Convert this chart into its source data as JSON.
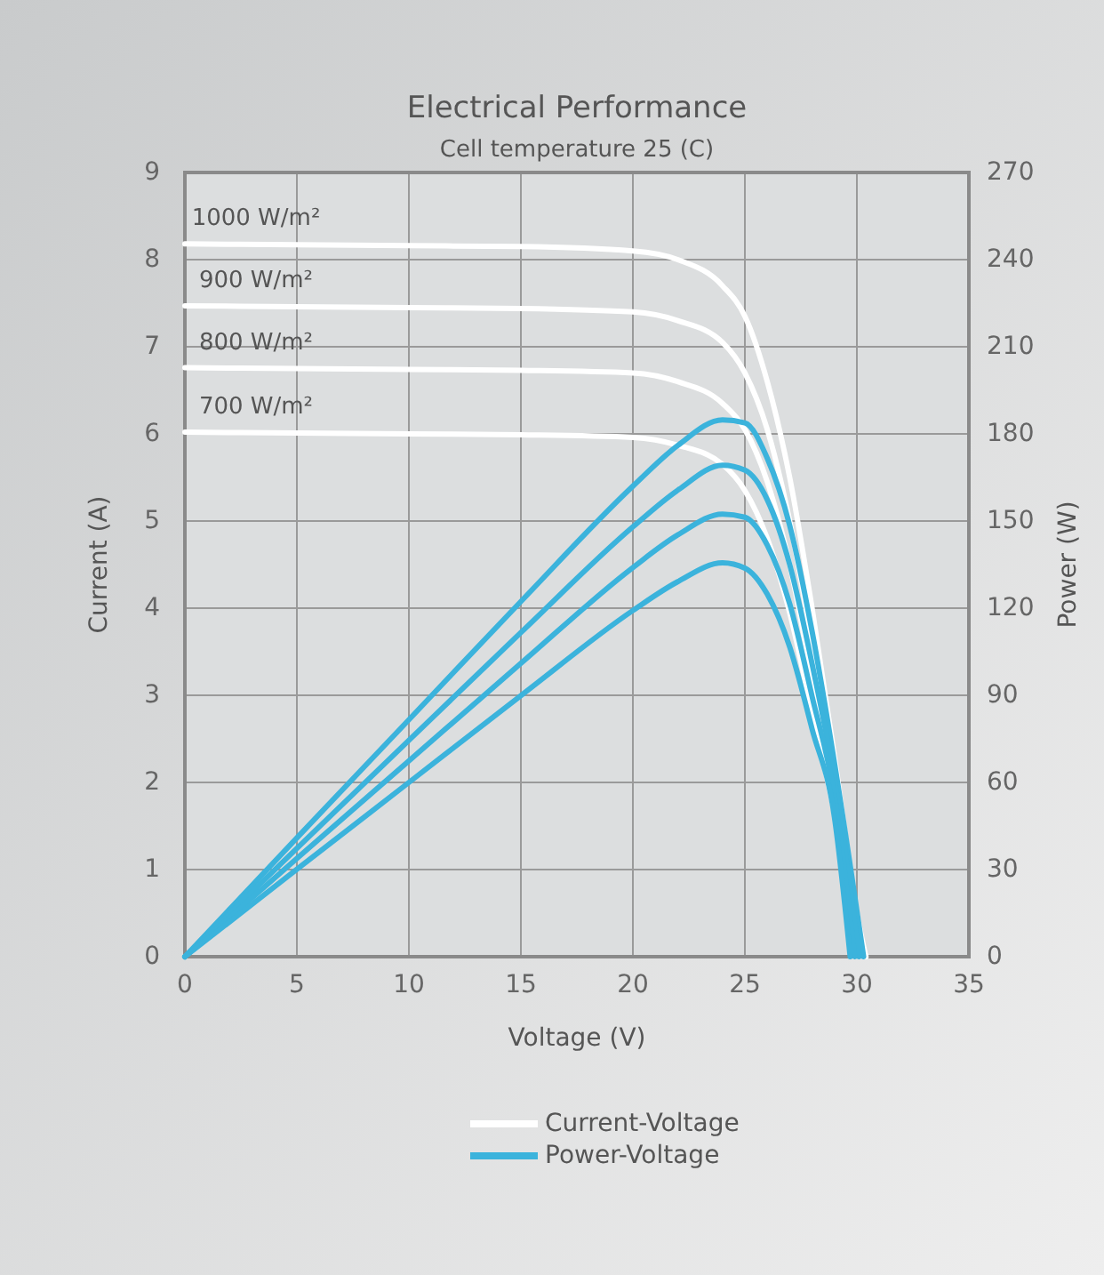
{
  "chart_data": {
    "type": "line",
    "title": "Electrical  Performance",
    "subtitle": "Cell temperature 25 (C)",
    "xlabel": "Voltage  (V)",
    "ylabel": "Current  (A)",
    "y2label": "Power  (W)",
    "x": [
      0,
      5,
      10,
      15,
      20,
      22,
      24,
      25,
      26,
      27,
      28,
      29,
      30,
      30.4
    ],
    "xlim": [
      0,
      35
    ],
    "xticks": [
      0,
      5,
      10,
      15,
      20,
      25,
      30,
      35
    ],
    "ylim": [
      0,
      9
    ],
    "yticks": [
      0,
      1,
      2,
      3,
      4,
      5,
      6,
      7,
      8,
      9
    ],
    "y2lim": [
      0,
      270
    ],
    "y2ticks": [
      0,
      30,
      60,
      90,
      120,
      150,
      180,
      210,
      240,
      270
    ],
    "grid": true,
    "legend": "bottom",
    "line_style": "solid",
    "marker": "none",
    "series": [
      {
        "name": "Current-Voltage",
        "color": "#ffffff",
        "values": [
          8.18,
          8.17,
          8.16,
          8.15,
          8.1,
          8.0,
          7.7,
          7.35,
          6.6,
          5.5,
          4.0,
          2.3,
          0.5,
          0
        ]
      },
      {
        "color": "#ffffff",
        "values": [
          7.47,
          7.46,
          7.45,
          7.44,
          7.4,
          7.3,
          7.05,
          6.7,
          6.05,
          5.0,
          3.6,
          2.1,
          0.4,
          0
        ]
      },
      {
        "color": "#ffffff",
        "values": [
          6.76,
          6.75,
          6.74,
          6.73,
          6.7,
          6.6,
          6.35,
          6.05,
          5.45,
          4.5,
          3.2,
          1.9,
          0.35,
          0
        ]
      },
      {
        "color": "#ffffff",
        "values": [
          6.02,
          6.01,
          6.0,
          5.99,
          5.96,
          5.87,
          5.65,
          5.35,
          4.8,
          3.95,
          2.8,
          1.65,
          0.3,
          0
        ]
      },
      {
        "name": "Power-Voltage",
        "color": "#3bb3dc",
        "axis": "y2",
        "x": [
          0,
          5,
          10,
          15,
          20,
          22,
          24,
          25,
          26,
          27,
          28,
          29,
          30.3
        ],
        "values": [
          0,
          40.9,
          81.6,
          122.3,
          162,
          176,
          184.8,
          183.8,
          171.6,
          148.5,
          112,
          66.7,
          0
        ]
      },
      {
        "color": "#3bb3dc",
        "axis": "y2",
        "x": [
          0,
          5,
          10,
          15,
          20,
          22,
          24,
          25,
          26,
          27,
          28,
          29,
          30.1
        ],
        "values": [
          0,
          37.3,
          74.5,
          111.6,
          148,
          160.6,
          169.2,
          167.5,
          157.3,
          135,
          100.8,
          60.9,
          0
        ]
      },
      {
        "color": "#3bb3dc",
        "axis": "y2",
        "x": [
          0,
          5,
          10,
          15,
          20,
          22,
          24,
          25,
          26,
          27,
          28,
          29,
          29.9
        ],
        "values": [
          0,
          33.8,
          67.4,
          101,
          134,
          145.2,
          152.4,
          151.3,
          141.7,
          121.5,
          89.6,
          55.1,
          0
        ]
      },
      {
        "color": "#3bb3dc",
        "axis": "y2",
        "x": [
          0,
          5,
          10,
          15,
          20,
          22,
          24,
          25,
          26,
          27,
          28,
          29,
          29.7
        ],
        "values": [
          0,
          30.1,
          60,
          89.9,
          119.2,
          129.1,
          135.6,
          133.8,
          124.8,
          106.7,
          78.4,
          47.9,
          0
        ]
      }
    ],
    "annotations": [
      "1000 W/m²",
      "900 W/m²",
      "800 W/m²",
      "700 W/m²"
    ]
  }
}
